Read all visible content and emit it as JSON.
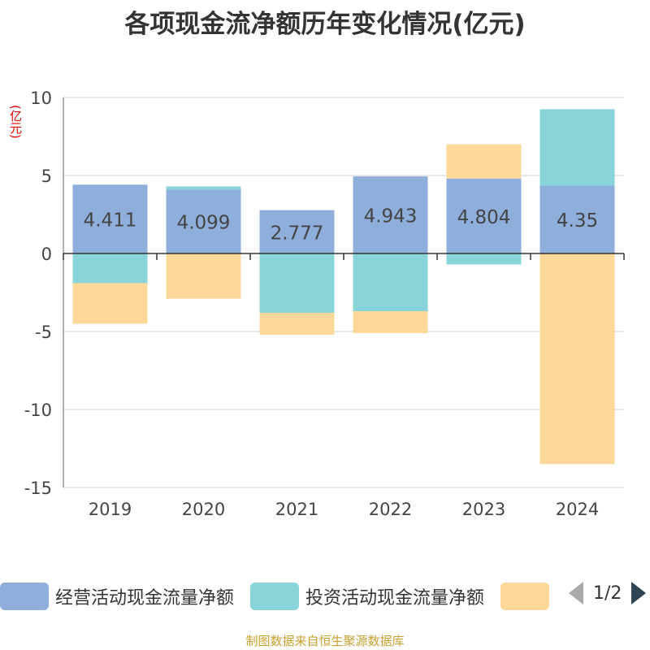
{
  "title": "各项现金流净额历年变化情况(亿元)",
  "unit_label": "(亿元)",
  "source": "制图数据来自恒生聚源数据库",
  "legend": {
    "items": [
      {
        "label": "经营活动现金流量净额",
        "color": "#8eaedb"
      },
      {
        "label": "投资活动现金流量净额",
        "color": "#88d4d8"
      },
      {
        "label": "",
        "color": "#fdd898"
      }
    ],
    "page": "1/2"
  },
  "chart_data": {
    "type": "bar",
    "stacked": true,
    "categories": [
      "2019",
      "2020",
      "2021",
      "2022",
      "2023",
      "2024"
    ],
    "ylim": [
      -15,
      10
    ],
    "yticks": [
      10,
      5,
      0,
      -5,
      -10,
      -15
    ],
    "grid": true,
    "legend_position": "bottom",
    "series": [
      {
        "name": "经营活动现金流量净额",
        "color": "#8eaedb",
        "values": [
          4.411,
          4.099,
          2.777,
          4.943,
          4.804,
          4.35
        ],
        "labels": [
          "4.411",
          "4.099",
          "2.777",
          "4.943",
          "4.804",
          "4.35"
        ]
      },
      {
        "name": "投资活动现金流量净额",
        "color": "#88d4d8",
        "values": [
          -1.9,
          0.2,
          -3.8,
          -3.7,
          -0.7,
          4.9
        ]
      },
      {
        "color": "#fdd898",
        "values": [
          -2.6,
          -2.9,
          -1.4,
          -1.4,
          2.2,
          -13.5
        ]
      }
    ]
  }
}
